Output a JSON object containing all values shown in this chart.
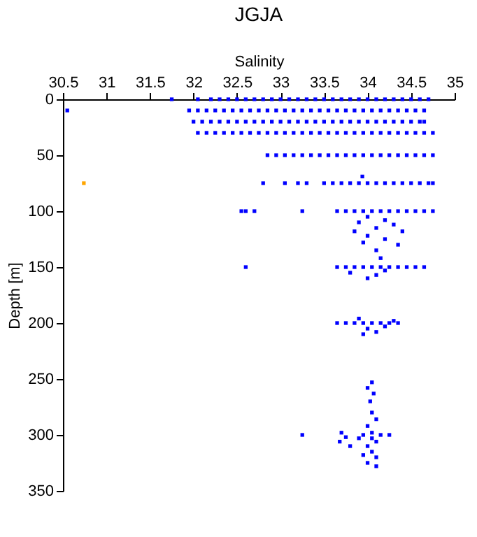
{
  "chart_data": {
    "type": "scatter",
    "title": "JGJA",
    "xlabel": "Salinity",
    "ylabel": "Depth [m]",
    "xlim": [
      30.5,
      35
    ],
    "xticks": [
      30.5,
      31,
      31.5,
      32,
      32.5,
      33,
      33.5,
      34,
      34.5,
      35
    ],
    "ylim": [
      350,
      0
    ],
    "yticks": [
      0,
      50,
      100,
      150,
      200,
      250,
      300,
      350
    ],
    "marker": "square",
    "series": [
      {
        "color": "#0000ff",
        "x": [
          31.75,
          32.05,
          32.2,
          32.3,
          32.4,
          32.5,
          32.6,
          32.7,
          32.8,
          32.9,
          33.0,
          33.1,
          33.2,
          33.3,
          33.4,
          33.5,
          33.6,
          33.7,
          33.8,
          33.9,
          34.0,
          34.1,
          34.2,
          34.3,
          34.4,
          34.5,
          34.6,
          34.7
        ],
        "values": [
          0,
          0,
          0,
          0,
          0,
          0,
          0,
          0,
          0,
          0,
          0,
          0,
          0,
          0,
          0,
          0,
          0,
          0,
          0,
          0,
          0,
          0,
          0,
          0,
          0,
          0,
          0,
          0
        ]
      },
      {
        "color": "#0000ff",
        "x": [
          30.55,
          31.95,
          32.05,
          32.15,
          32.25,
          32.35,
          32.45,
          32.55,
          32.65,
          32.75,
          32.85,
          32.95,
          33.05,
          33.15,
          33.25,
          33.35,
          33.45,
          33.55,
          33.65,
          33.75,
          33.85,
          33.95,
          34.05,
          34.15,
          34.25,
          34.35,
          34.45,
          34.55,
          34.65
        ],
        "values": [
          10,
          10,
          10,
          10,
          10,
          10,
          10,
          10,
          10,
          10,
          10,
          10,
          10,
          10,
          10,
          10,
          10,
          10,
          10,
          10,
          10,
          10,
          10,
          10,
          10,
          10,
          10,
          10,
          10
        ]
      },
      {
        "color": "#0000ff",
        "x": [
          32.0,
          32.1,
          32.2,
          32.3,
          32.4,
          32.5,
          32.6,
          32.7,
          32.8,
          32.9,
          33.0,
          33.1,
          33.2,
          33.3,
          33.4,
          33.5,
          33.6,
          33.7,
          33.8,
          33.9,
          34.0,
          34.1,
          34.2,
          34.3,
          34.4,
          34.5,
          34.6,
          34.65
        ],
        "values": [
          20,
          20,
          20,
          20,
          20,
          20,
          20,
          20,
          20,
          20,
          20,
          20,
          20,
          20,
          20,
          20,
          20,
          20,
          20,
          20,
          20,
          20,
          20,
          20,
          20,
          20,
          20,
          20
        ]
      },
      {
        "color": "#0000ff",
        "x": [
          32.05,
          32.15,
          32.25,
          32.35,
          32.45,
          32.55,
          32.65,
          32.75,
          32.85,
          32.95,
          33.05,
          33.15,
          33.25,
          33.35,
          33.45,
          33.55,
          33.65,
          33.75,
          33.85,
          33.95,
          34.05,
          34.15,
          34.25,
          34.35,
          34.45,
          34.55,
          34.65,
          34.75
        ],
        "values": [
          30,
          30,
          30,
          30,
          30,
          30,
          30,
          30,
          30,
          30,
          30,
          30,
          30,
          30,
          30,
          30,
          30,
          30,
          30,
          30,
          30,
          30,
          30,
          30,
          30,
          30,
          30,
          30
        ]
      },
      {
        "color": "#0000ff",
        "x": [
          32.85,
          32.95,
          33.05,
          33.15,
          33.25,
          33.35,
          33.45,
          33.55,
          33.65,
          33.75,
          33.85,
          33.95,
          34.05,
          34.15,
          34.25,
          34.35,
          34.45,
          34.55,
          34.65,
          34.75
        ],
        "values": [
          50,
          50,
          50,
          50,
          50,
          50,
          50,
          50,
          50,
          50,
          50,
          50,
          50,
          50,
          50,
          50,
          50,
          50,
          50,
          50
        ]
      },
      {
        "color": "#0000ff",
        "x": [
          32.8,
          33.05,
          33.2,
          33.3,
          33.5,
          33.6,
          33.7,
          33.8,
          33.9,
          34.0,
          34.1,
          34.2,
          34.3,
          34.4,
          34.5,
          34.6,
          34.7,
          34.75,
          33.94
        ],
        "values": [
          75,
          75,
          75,
          75,
          75,
          75,
          75,
          75,
          75,
          75,
          75,
          75,
          75,
          75,
          75,
          75,
          75,
          75,
          69
        ]
      },
      {
        "color": "#0000ff",
        "x": [
          32.55,
          32.6,
          32.7,
          33.25,
          33.65,
          33.75,
          33.85,
          33.95,
          34.05,
          34.15,
          34.25,
          34.35,
          34.45,
          34.55,
          34.65,
          34.75,
          34.0,
          34.2,
          33.9,
          34.3,
          34.1,
          33.85,
          34.4,
          34.0,
          34.2,
          33.95,
          34.35,
          34.1,
          34.15
        ],
        "values": [
          100,
          100,
          100,
          100,
          100,
          100,
          100,
          100,
          100,
          100,
          100,
          100,
          100,
          100,
          100,
          100,
          105,
          108,
          110,
          112,
          115,
          118,
          118,
          122,
          125,
          128,
          130,
          135,
          142
        ]
      },
      {
        "color": "#0000ff",
        "x": [
          32.6,
          33.65,
          33.75,
          33.85,
          33.95,
          34.05,
          34.15,
          34.25,
          34.35,
          34.45,
          34.55,
          34.65,
          33.8,
          34.1,
          34.0,
          34.2
        ],
        "values": [
          150,
          150,
          150,
          150,
          150,
          150,
          150,
          150,
          150,
          150,
          150,
          150,
          155,
          157,
          160,
          153
        ]
      },
      {
        "color": "#0000ff",
        "x": [
          33.65,
          33.75,
          33.85,
          33.95,
          34.05,
          34.15,
          34.25,
          34.35,
          33.9,
          34.0,
          34.1,
          33.95,
          34.2,
          34.3
        ],
        "values": [
          200,
          200,
          200,
          200,
          200,
          200,
          200,
          200,
          196,
          205,
          208,
          210,
          203,
          198
        ]
      },
      {
        "color": "#0000ff",
        "x": [
          34.05,
          34.0,
          34.07,
          34.03,
          34.05,
          34.1,
          34.0,
          34.05,
          33.95,
          34.15,
          34.25,
          33.9,
          34.05,
          34.1,
          34.0,
          34.05,
          33.95,
          34.1,
          34.0,
          34.1,
          33.7,
          33.75,
          33.68,
          33.8,
          33.25
        ],
        "values": [
          253,
          258,
          263,
          270,
          280,
          286,
          292,
          298,
          300,
          300,
          300,
          303,
          303,
          306,
          310,
          315,
          318,
          320,
          325,
          328,
          298,
          302,
          306,
          310,
          300
        ]
      },
      {
        "color": "#ffa500",
        "x": [
          30.74
        ],
        "values": [
          75
        ]
      }
    ]
  }
}
